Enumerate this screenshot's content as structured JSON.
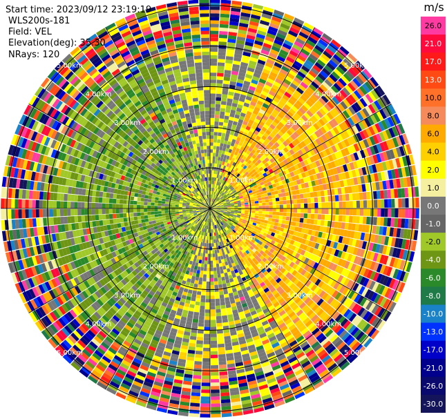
{
  "header": {
    "start_time": "Start time: 2023/09/12 23:19:19",
    "site": "WLS200s-181",
    "field": "Field: VEL",
    "elevation": "Elevation(deg): 35.30",
    "nrays": "NRays: 120"
  },
  "colorbar": {
    "unit": "m/s",
    "levels": [
      {
        "label": "26.0",
        "color": "#ff3aa0"
      },
      {
        "label": "21.0",
        "color": "#ff0a3c"
      },
      {
        "label": "17.0",
        "color": "#ff1a1a"
      },
      {
        "label": "13.0",
        "color": "#ff4a14"
      },
      {
        "label": "10.0",
        "color": "#ff7028"
      },
      {
        "label": "8.0",
        "color": "#f58a5a"
      },
      {
        "label": "6.0",
        "color": "#ffaa00"
      },
      {
        "label": "4.0",
        "color": "#ffd000"
      },
      {
        "label": "2.0",
        "color": "#ffff00"
      },
      {
        "label": "1.0",
        "color": "#f5f0a0"
      },
      {
        "label": "0.0",
        "color": "#777777"
      },
      {
        "label": "-1.0",
        "color": "#666666"
      },
      {
        "label": "-2.0",
        "color": "#a0c828"
      },
      {
        "label": "-4.0",
        "color": "#6e9614"
      },
      {
        "label": "-6.0",
        "color": "#2a8a2a"
      },
      {
        "label": "-8.0",
        "color": "#1e7a46"
      },
      {
        "label": "-10.0",
        "color": "#1a82c8"
      },
      {
        "label": "-13.0",
        "color": "#0032ff"
      },
      {
        "label": "-17.0",
        "color": "#0000c8"
      },
      {
        "label": "-21.0",
        "color": "#00008c"
      },
      {
        "label": "-26.0",
        "color": "#0a0a6e"
      },
      {
        "label": "-30.0",
        "color": "#14145a"
      }
    ]
  },
  "chart_data": {
    "type": "heatmap",
    "projection": "polar PPI",
    "field": "VEL",
    "unit": "m/s",
    "n_rays": 120,
    "range_rings_km": [
      1.0,
      2.0,
      3.0,
      4.0,
      5.0
    ],
    "ring_labels": [
      "1.00km",
      "2.00km",
      "3.00km",
      "4.00km",
      "5.00km"
    ],
    "sectors": [
      {
        "direction": "east",
        "dominant_velocity": "2.0 to 10.0"
      },
      {
        "direction": "west",
        "dominant_velocity": "-2.0 to -6.0"
      },
      {
        "direction": "south",
        "dominant_velocity": "0.0 to 2.0"
      },
      {
        "direction": "outer ring",
        "dominant_velocity": "noise, full range"
      }
    ]
  }
}
